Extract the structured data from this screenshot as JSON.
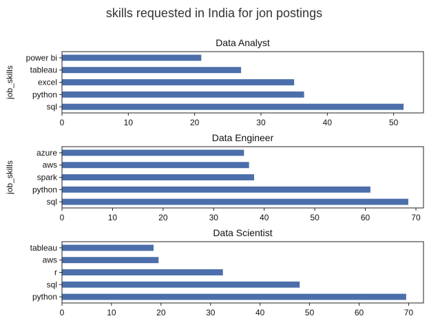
{
  "figure": {
    "title": "skills requested in India for jon postings",
    "bar_color": "#4c6eab"
  },
  "chart_data": [
    {
      "type": "bar",
      "orientation": "horizontal",
      "title": "Data Analyst",
      "xlabel": "",
      "ylabel": "job_skills",
      "categories": [
        "power bi",
        "tableau",
        "excel",
        "python",
        "sql"
      ],
      "values": [
        21,
        27,
        35,
        36.5,
        51.5
      ],
      "xlim": [
        0,
        54.5
      ],
      "xticks": [
        0,
        10,
        20,
        30,
        40,
        50
      ],
      "grid": false,
      "legend": "none"
    },
    {
      "type": "bar",
      "orientation": "horizontal",
      "title": "Data Engineer",
      "xlabel": "",
      "ylabel": "job_skills",
      "categories": [
        "azure",
        "aws",
        "spark",
        "python",
        "sql"
      ],
      "values": [
        36,
        37,
        38,
        61,
        68.5
      ],
      "xlim": [
        0,
        71.5
      ],
      "xticks": [
        0,
        10,
        20,
        30,
        40,
        50,
        60,
        70
      ],
      "grid": false,
      "legend": "none"
    },
    {
      "type": "bar",
      "orientation": "horizontal",
      "title": "Data Scientist",
      "xlabel": "",
      "ylabel": "",
      "categories": [
        "tableau",
        "aws",
        "r",
        "sql",
        "python"
      ],
      "values": [
        18.5,
        19.5,
        32.5,
        48,
        69.5
      ],
      "xlim": [
        0,
        73
      ],
      "xticks": [
        0,
        10,
        20,
        30,
        40,
        50,
        60,
        70
      ],
      "grid": false,
      "legend": "none"
    }
  ]
}
